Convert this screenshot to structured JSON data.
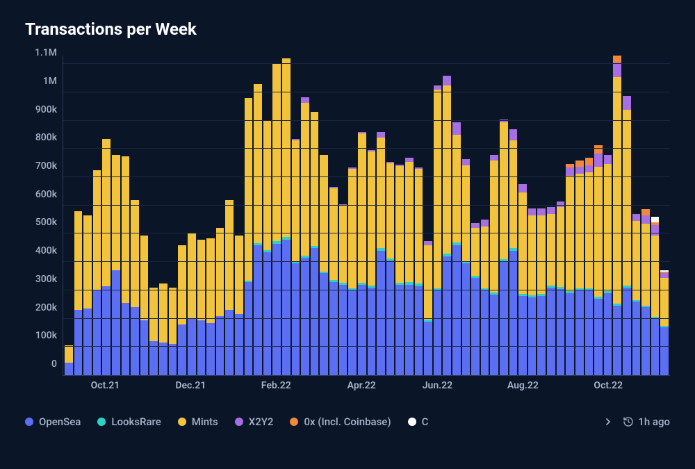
{
  "title": "Transactions per Week",
  "chart": {
    "type": "stacked-bar",
    "background_color": "#0a1628",
    "grid_color": "#1a2740",
    "axis_color": "#2a3a56",
    "tick_label_color": "#a6b3c9",
    "tick_fontsize": 14,
    "title_fontsize": 24,
    "title_fontweight": 700,
    "ymax": 1130000,
    "ymin": 0,
    "yticks": [
      {
        "value": 0,
        "label": "0"
      },
      {
        "value": 100000,
        "label": "100k"
      },
      {
        "value": 200000,
        "label": "200k"
      },
      {
        "value": 300000,
        "label": "300k"
      },
      {
        "value": 400000,
        "label": "400k"
      },
      {
        "value": 500000,
        "label": "500k"
      },
      {
        "value": 600000,
        "label": "600k"
      },
      {
        "value": 700000,
        "label": "700k"
      },
      {
        "value": 800000,
        "label": "800k"
      },
      {
        "value": 900000,
        "label": "900k"
      },
      {
        "value": 1000000,
        "label": "1M"
      },
      {
        "value": 1100000,
        "label": "1.1M"
      }
    ],
    "xticks": [
      {
        "index": 4,
        "label": "Oct.21"
      },
      {
        "index": 13,
        "label": "Dec.21"
      },
      {
        "index": 22,
        "label": "Feb.22"
      },
      {
        "index": 31,
        "label": "Apr.22"
      },
      {
        "index": 39,
        "label": "Jun.22"
      },
      {
        "index": 48,
        "label": "Aug.22"
      },
      {
        "index": 57,
        "label": "Oct.22"
      }
    ],
    "series_order": [
      "OpenSea",
      "LooksRare",
      "Mints",
      "X2Y2",
      "0x",
      "Other"
    ],
    "series_colors": {
      "OpenSea": "#5c6ff2",
      "LooksRare": "#2ed1c7",
      "Mints": "#f2c33c",
      "X2Y2": "#a86fe2",
      "0x": "#f08a3a",
      "Other": "#ffffff"
    },
    "bars": [
      {
        "OpenSea": 45000,
        "LooksRare": 0,
        "Mints": 60000,
        "X2Y2": 0,
        "0x": 0,
        "Other": 0
      },
      {
        "OpenSea": 230000,
        "LooksRare": 0,
        "Mints": 350000,
        "X2Y2": 0,
        "0x": 0,
        "Other": 0
      },
      {
        "OpenSea": 235000,
        "LooksRare": 0,
        "Mints": 330000,
        "X2Y2": 0,
        "0x": 0,
        "Other": 0
      },
      {
        "OpenSea": 300000,
        "LooksRare": 0,
        "Mints": 425000,
        "X2Y2": 0,
        "0x": 0,
        "Other": 0
      },
      {
        "OpenSea": 315000,
        "LooksRare": 0,
        "Mints": 520000,
        "X2Y2": 0,
        "0x": 0,
        "Other": 0
      },
      {
        "OpenSea": 370000,
        "LooksRare": 0,
        "Mints": 410000,
        "X2Y2": 0,
        "0x": 0,
        "Other": 0
      },
      {
        "OpenSea": 255000,
        "LooksRare": 0,
        "Mints": 520000,
        "X2Y2": 0,
        "0x": 0,
        "Other": 0
      },
      {
        "OpenSea": 240000,
        "LooksRare": 0,
        "Mints": 380000,
        "X2Y2": 0,
        "0x": 0,
        "Other": 0
      },
      {
        "OpenSea": 195000,
        "LooksRare": 0,
        "Mints": 300000,
        "X2Y2": 0,
        "0x": 0,
        "Other": 0
      },
      {
        "OpenSea": 120000,
        "LooksRare": 0,
        "Mints": 190000,
        "X2Y2": 0,
        "0x": 0,
        "Other": 0
      },
      {
        "OpenSea": 115000,
        "LooksRare": 0,
        "Mints": 210000,
        "X2Y2": 0,
        "0x": 0,
        "Other": 0
      },
      {
        "OpenSea": 110000,
        "LooksRare": 0,
        "Mints": 200000,
        "X2Y2": 0,
        "0x": 0,
        "Other": 0
      },
      {
        "OpenSea": 180000,
        "LooksRare": 0,
        "Mints": 280000,
        "X2Y2": 0,
        "0x": 0,
        "Other": 0
      },
      {
        "OpenSea": 200000,
        "LooksRare": 0,
        "Mints": 300000,
        "X2Y2": 0,
        "0x": 0,
        "Other": 0
      },
      {
        "OpenSea": 195000,
        "LooksRare": 0,
        "Mints": 285000,
        "X2Y2": 0,
        "0x": 0,
        "Other": 0
      },
      {
        "OpenSea": 185000,
        "LooksRare": 0,
        "Mints": 300000,
        "X2Y2": 0,
        "0x": 0,
        "Other": 0
      },
      {
        "OpenSea": 210000,
        "LooksRare": 0,
        "Mints": 310000,
        "X2Y2": 0,
        "0x": 0,
        "Other": 0
      },
      {
        "OpenSea": 230000,
        "LooksRare": 0,
        "Mints": 390000,
        "X2Y2": 0,
        "0x": 0,
        "Other": 0
      },
      {
        "OpenSea": 215000,
        "LooksRare": 0,
        "Mints": 280000,
        "X2Y2": 0,
        "0x": 0,
        "Other": 0
      },
      {
        "OpenSea": 330000,
        "LooksRare": 5000,
        "Mints": 645000,
        "X2Y2": 0,
        "0x": 0,
        "Other": 0
      },
      {
        "OpenSea": 460000,
        "LooksRare": 6000,
        "Mints": 564000,
        "X2Y2": 0,
        "0x": 0,
        "Other": 0
      },
      {
        "OpenSea": 435000,
        "LooksRare": 6000,
        "Mints": 459000,
        "X2Y2": 0,
        "0x": 0,
        "Other": 0
      },
      {
        "OpenSea": 465000,
        "LooksRare": 8000,
        "Mints": 627000,
        "X2Y2": 0,
        "0x": 0,
        "Other": 0
      },
      {
        "OpenSea": 480000,
        "LooksRare": 8000,
        "Mints": 632000,
        "X2Y2": 0,
        "0x": 0,
        "Other": 0
      },
      {
        "OpenSea": 395000,
        "LooksRare": 7000,
        "Mints": 428000,
        "X2Y2": 5000,
        "0x": 0,
        "Other": 0
      },
      {
        "OpenSea": 415000,
        "LooksRare": 7000,
        "Mints": 540000,
        "X2Y2": 20000,
        "0x": 0,
        "Other": 0
      },
      {
        "OpenSea": 450000,
        "LooksRare": 7000,
        "Mints": 473000,
        "X2Y2": 0,
        "0x": 0,
        "Other": 0
      },
      {
        "OpenSea": 360000,
        "LooksRare": 6000,
        "Mints": 414000,
        "X2Y2": 0,
        "0x": 0,
        "Other": 0
      },
      {
        "OpenSea": 330000,
        "LooksRare": 6000,
        "Mints": 324000,
        "X2Y2": 5000,
        "0x": 0,
        "Other": 0
      },
      {
        "OpenSea": 320000,
        "LooksRare": 6000,
        "Mints": 274000,
        "X2Y2": 5000,
        "0x": 0,
        "Other": 0
      },
      {
        "OpenSea": 300000,
        "LooksRare": 7000,
        "Mints": 423000,
        "X2Y2": 5000,
        "0x": 0,
        "Other": 0
      },
      {
        "OpenSea": 320000,
        "LooksRare": 8000,
        "Mints": 527000,
        "X2Y2": 5000,
        "0x": 0,
        "Other": 0
      },
      {
        "OpenSea": 310000,
        "LooksRare": 8000,
        "Mints": 472000,
        "X2Y2": 5000,
        "0x": 0,
        "Other": 0
      },
      {
        "OpenSea": 440000,
        "LooksRare": 10000,
        "Mints": 390000,
        "X2Y2": 20000,
        "0x": 0,
        "Other": 0
      },
      {
        "OpenSea": 405000,
        "LooksRare": 8000,
        "Mints": 337000,
        "X2Y2": 5000,
        "0x": 0,
        "Other": 0
      },
      {
        "OpenSea": 320000,
        "LooksRare": 8000,
        "Mints": 412000,
        "X2Y2": 5000,
        "0x": 0,
        "Other": 0
      },
      {
        "OpenSea": 320000,
        "LooksRare": 10000,
        "Mints": 425000,
        "X2Y2": 15000,
        "0x": 0,
        "Other": 0
      },
      {
        "OpenSea": 315000,
        "LooksRare": 10000,
        "Mints": 405000,
        "X2Y2": 5000,
        "0x": 0,
        "Other": 0
      },
      {
        "OpenSea": 190000,
        "LooksRare": 7000,
        "Mints": 263000,
        "X2Y2": 15000,
        "0x": 0,
        "Other": 0
      },
      {
        "OpenSea": 300000,
        "LooksRare": 8000,
        "Mints": 702000,
        "X2Y2": 15000,
        "0x": 0,
        "Other": 0
      },
      {
        "OpenSea": 420000,
        "LooksRare": 10000,
        "Mints": 595000,
        "X2Y2": 35000,
        "0x": 0,
        "Other": 0
      },
      {
        "OpenSea": 460000,
        "LooksRare": 10000,
        "Mints": 380000,
        "X2Y2": 45000,
        "0x": 0,
        "Other": 0
      },
      {
        "OpenSea": 395000,
        "LooksRare": 8000,
        "Mints": 340000,
        "X2Y2": 20000,
        "0x": 0,
        "Other": 0
      },
      {
        "OpenSea": 345000,
        "LooksRare": 7000,
        "Mints": 170000,
        "X2Y2": 15000,
        "0x": 0,
        "Other": 0
      },
      {
        "OpenSea": 300000,
        "LooksRare": 7000,
        "Mints": 218000,
        "X2Y2": 25000,
        "0x": 0,
        "Other": 0
      },
      {
        "OpenSea": 285000,
        "LooksRare": 8000,
        "Mints": 467000,
        "X2Y2": 20000,
        "0x": 0,
        "Other": 0
      },
      {
        "OpenSea": 400000,
        "LooksRare": 10000,
        "Mints": 484000,
        "X2Y2": 10000,
        "0x": 0,
        "Other": 0
      },
      {
        "OpenSea": 440000,
        "LooksRare": 10000,
        "Mints": 380000,
        "X2Y2": 40000,
        "0x": 0,
        "Other": 0
      },
      {
        "OpenSea": 280000,
        "LooksRare": 8000,
        "Mints": 357000,
        "X2Y2": 30000,
        "0x": 0,
        "Other": 0
      },
      {
        "OpenSea": 275000,
        "LooksRare": 8000,
        "Mints": 282000,
        "X2Y2": 25000,
        "0x": 0,
        "Other": 0
      },
      {
        "OpenSea": 280000,
        "LooksRare": 8000,
        "Mints": 277000,
        "X2Y2": 25000,
        "0x": 0,
        "Other": 0
      },
      {
        "OpenSea": 310000,
        "LooksRare": 8000,
        "Mints": 252000,
        "X2Y2": 25000,
        "0x": 0,
        "Other": 0
      },
      {
        "OpenSea": 305000,
        "LooksRare": 8000,
        "Mints": 282000,
        "X2Y2": 20000,
        "0x": 0,
        "Other": 0
      },
      {
        "OpenSea": 290000,
        "LooksRare": 8000,
        "Mints": 407000,
        "X2Y2": 30000,
        "0x": 12000,
        "Other": 0
      },
      {
        "OpenSea": 300000,
        "LooksRare": 8000,
        "Mints": 405000,
        "X2Y2": 25000,
        "0x": 20000,
        "Other": 0
      },
      {
        "OpenSea": 300000,
        "LooksRare": 8000,
        "Mints": 410000,
        "X2Y2": 25000,
        "0x": 25000,
        "Other": 0
      },
      {
        "OpenSea": 270000,
        "LooksRare": 8000,
        "Mints": 460000,
        "X2Y2": 45000,
        "0x": 30000,
        "Other": 0
      },
      {
        "OpenSea": 290000,
        "LooksRare": 8000,
        "Mints": 450000,
        "X2Y2": 30000,
        "0x": 0,
        "Other": 0
      },
      {
        "OpenSea": 245000,
        "LooksRare": 8000,
        "Mints": 802000,
        "X2Y2": 50000,
        "0x": 25000,
        "Other": 0
      },
      {
        "OpenSea": 310000,
        "LooksRare": 8000,
        "Mints": 620000,
        "X2Y2": 50000,
        "0x": 0,
        "Other": 0
      },
      {
        "OpenSea": 260000,
        "LooksRare": 6000,
        "Mints": 279000,
        "X2Y2": 25000,
        "0x": 0,
        "Other": 0
      },
      {
        "OpenSea": 240000,
        "LooksRare": 6000,
        "Mints": 290000,
        "X2Y2": 30000,
        "0x": 20000,
        "Other": 0
      },
      {
        "OpenSea": 200000,
        "LooksRare": 6000,
        "Mints": 289000,
        "X2Y2": 35000,
        "0x": 10000,
        "Other": 20000
      },
      {
        "OpenSea": 170000,
        "LooksRare": 5000,
        "Mints": 170000,
        "X2Y2": 15000,
        "0x": 5000,
        "Other": 5000
      }
    ]
  },
  "legend": {
    "items": [
      {
        "key": "OpenSea",
        "label": "OpenSea"
      },
      {
        "key": "LooksRare",
        "label": "LooksRare"
      },
      {
        "key": "Mints",
        "label": "Mints"
      },
      {
        "key": "X2Y2",
        "label": "X2Y2"
      },
      {
        "key": "0x",
        "label": "0x (Incl. Coinbase)"
      },
      {
        "key": "Other",
        "label": "C"
      }
    ]
  },
  "timestamp": "1h ago"
}
